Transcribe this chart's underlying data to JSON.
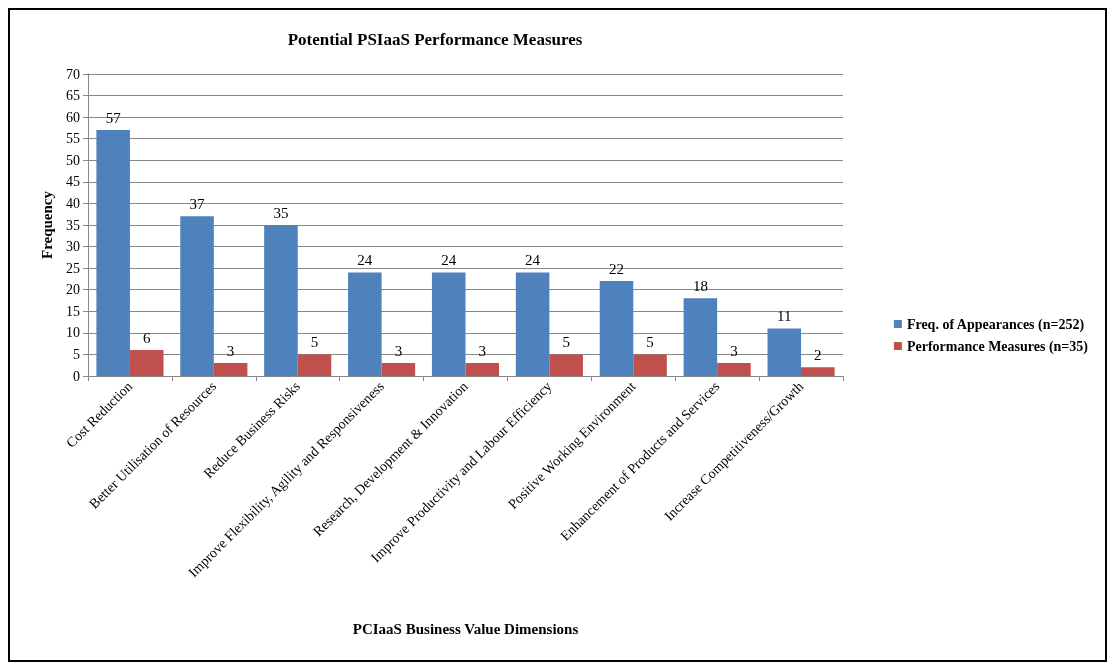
{
  "chart_data": {
    "type": "bar",
    "title": "Potential PSIaaS Performance Measures",
    "xlabel": "PCIaaS Business Value Dimensions",
    "ylabel": "Frequency",
    "categories": [
      "Cost Reduction",
      "Better Utilisation of Resources",
      "Reduce Business Risks",
      "Improve Flexibility, Agility and Responsiveness",
      "Research, Development & Innovation",
      "Improve Productivity and Labour Efficiency",
      "Positive Working Environment",
      "Enhancement of Products and Services",
      "Increase Competitiveness/Growth"
    ],
    "series": [
      {
        "name": "Freq. of Appearances (n=252)",
        "color": "#4f81bd",
        "values": [
          57,
          37,
          35,
          24,
          24,
          24,
          22,
          18,
          11
        ]
      },
      {
        "name": "Performance Measures (n=35)",
        "color": "#c0504d",
        "values": [
          6,
          3,
          5,
          3,
          3,
          5,
          5,
          3,
          2
        ]
      }
    ],
    "ylim": [
      0,
      70
    ],
    "yticks": [
      0,
      5,
      10,
      15,
      20,
      25,
      30,
      35,
      40,
      45,
      50,
      55,
      60,
      65,
      70
    ],
    "grid": "y",
    "legend": "right",
    "data_labels": true
  }
}
